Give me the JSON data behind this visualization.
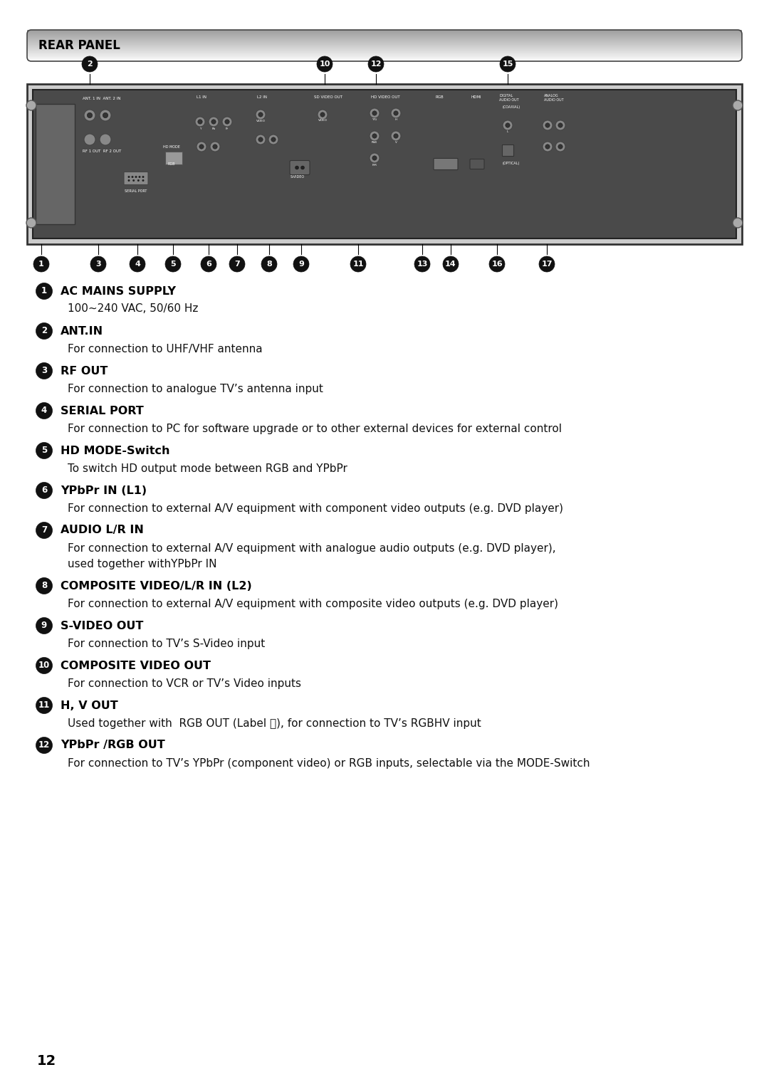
{
  "title": "REAR PANEL",
  "bg_color": "#ffffff",
  "header_text_color": "#000000",
  "items": [
    {
      "num": "1",
      "label": "AC MAINS SUPPLY",
      "desc": "100~240 VAC, 50/60 Hz",
      "desc_has_sub": true,
      "sub_positions": [
        {
          "text": "AC",
          "start": 8,
          "end": 10
        }
      ]
    },
    {
      "num": "2",
      "label": "ANT.IN",
      "desc": "For connection to UHF/VHF antenna",
      "desc_has_sub": false
    },
    {
      "num": "3",
      "label": "RF OUT",
      "desc": "For connection to analogue TV’s antenna input",
      "desc_has_sub": false
    },
    {
      "num": "4",
      "label": "SERIAL PORT",
      "desc": "For connection to PC for software upgrade or to other external devices for external control",
      "desc_has_sub": false
    },
    {
      "num": "5",
      "label": "HD MODE-Switch",
      "desc": "To switch HD output mode between RGB and YPbPr",
      "desc_has_sub": false
    },
    {
      "num": "6",
      "label": "YPbPr IN (L1)",
      "desc": "For connection to external A/V equipment with component video outputs (e.g. DVD player)",
      "desc_has_sub": false
    },
    {
      "num": "7",
      "label": "AUDIO L/R IN",
      "desc": "For connection to external A/V equipment with analogue audio outputs (e.g. DVD player),",
      "desc2": "used together withYPbPr IN",
      "desc_has_sub": false
    },
    {
      "num": "8",
      "label": "COMPOSITE VIDEO/L/R IN (L2)",
      "desc": "For connection to external A/V equipment with composite video outputs (e.g. DVD player)",
      "desc_has_sub": false
    },
    {
      "num": "9",
      "label": "S-VIDEO OUT",
      "desc": "For connection to TV’s S-Video input",
      "desc_has_sub": false
    },
    {
      "num": "10",
      "label": "COMPOSITE VIDEO OUT",
      "desc": "For connection to VCR or TV’s Video inputs",
      "desc_has_sub": false
    },
    {
      "num": "11",
      "label": "H, V OUT",
      "desc": "Used together with  RGB OUT (Label Ⓖ), for connection to TV’s RGBHV input",
      "desc_has_sub": false
    },
    {
      "num": "12",
      "label": "YPbPr /RGB OUT",
      "desc": "For connection to TV’s YPbPr (component video) or RGB inputs, selectable via the MODE-Switch",
      "desc_has_sub": false
    }
  ],
  "page_number": "12"
}
